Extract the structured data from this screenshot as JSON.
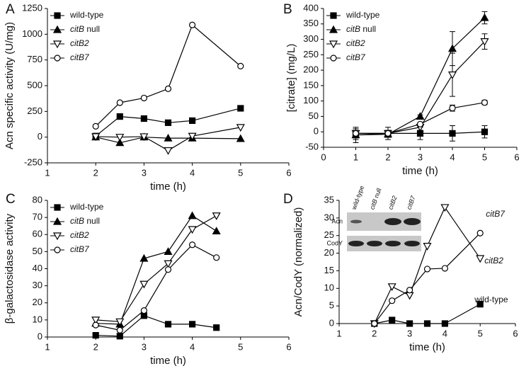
{
  "chart_data": [
    {
      "type": "line",
      "label": "A",
      "xlabel": "time (h)",
      "ylabel": "Acn specific activity (U/mg)",
      "xlim": [
        1,
        6
      ],
      "xticks": [
        1,
        2,
        3,
        4,
        5,
        6
      ],
      "ylim": [
        -250,
        1250
      ],
      "yticks": [
        -250,
        0,
        250,
        500,
        750,
        1000,
        1250
      ],
      "legend": "upper left",
      "x": [
        2,
        2.5,
        3,
        3.5,
        4,
        5
      ],
      "series": [
        {
          "name": "wild-type",
          "color": "#000000",
          "marker": "square",
          "filled": true,
          "values": [
            10,
            200,
            180,
            140,
            160,
            280
          ]
        },
        {
          "name": "citB null",
          "color": "#000000",
          "marker": "triangle",
          "filled": true,
          "values": [
            0,
            -55,
            0,
            -10,
            -10,
            -15
          ]
        },
        {
          "name": "citB2",
          "color": "#000000",
          "marker": "triangle-down",
          "filled": false,
          "values": [
            5,
            0,
            5,
            -130,
            10,
            95
          ]
        },
        {
          "name": "citB7",
          "color": "#000000",
          "marker": "circle",
          "filled": false,
          "values": [
            105,
            335,
            380,
            470,
            1090,
            690
          ]
        }
      ]
    },
    {
      "type": "line",
      "label": "B",
      "xlabel": "time (h)",
      "ylabel": "[citrate] (mg/L)",
      "xlim": [
        0,
        6
      ],
      "xticks": [
        0,
        1,
        2,
        3,
        4,
        5,
        6
      ],
      "ylim": [
        -50,
        400
      ],
      "yticks": [
        -50,
        0,
        50,
        100,
        150,
        200,
        250,
        300,
        350,
        400
      ],
      "legend": "upper left",
      "x": [
        1,
        2,
        3,
        4,
        5
      ],
      "series": [
        {
          "name": "wild-type",
          "color": "#000000",
          "marker": "square",
          "filled": true,
          "values": [
            -10,
            -5,
            -5,
            -5,
            0
          ],
          "errors": [
            25,
            20,
            20,
            25,
            20
          ]
        },
        {
          "name": "citB null",
          "color": "#000000",
          "marker": "triangle",
          "filled": true,
          "values": [
            -10,
            -8,
            50,
            270,
            370
          ],
          "errors": [
            15,
            10,
            5,
            55,
            20
          ]
        },
        {
          "name": "citB2",
          "color": "#000000",
          "marker": "triangle-down",
          "filled": false,
          "values": [
            -5,
            -5,
            15,
            185,
            293
          ],
          "errors": [
            15,
            10,
            10,
            70,
            25
          ]
        },
        {
          "name": "citB7",
          "color": "#000000",
          "marker": "circle",
          "filled": false,
          "values": [
            -5,
            -5,
            25,
            77,
            95
          ],
          "errors": [
            10,
            10,
            5,
            10,
            7
          ]
        }
      ]
    },
    {
      "type": "line",
      "label": "C",
      "xlabel": "time (h)",
      "ylabel": "β-galactosidase  activity",
      "xlim": [
        1,
        6
      ],
      "xticks": [
        1,
        2,
        3,
        4,
        5,
        6
      ],
      "ylim": [
        0,
        80
      ],
      "yticks": [
        0,
        10,
        20,
        30,
        40,
        50,
        60,
        70,
        80
      ],
      "legend": "upper left",
      "x": [
        2,
        2.5,
        3,
        3.5,
        4,
        4.5
      ],
      "series": [
        {
          "name": "wild-type",
          "color": "#000000",
          "marker": "square",
          "filled": true,
          "values": [
            1,
            0.5,
            12.5,
            7.5,
            7.5,
            5.5
          ]
        },
        {
          "name": "citB null",
          "color": "#000000",
          "marker": "triangle",
          "filled": true,
          "values": [
            8,
            7.5,
            46,
            50,
            71,
            62
          ]
        },
        {
          "name": "citB2",
          "color": "#000000",
          "marker": "triangle-down",
          "filled": false,
          "values": [
            10,
            9,
            31,
            43,
            63,
            71
          ]
        },
        {
          "name": "citB7",
          "color": "#000000",
          "marker": "circle",
          "filled": false,
          "values": [
            7,
            4,
            15.5,
            39.5,
            54,
            46.5
          ]
        }
      ]
    },
    {
      "type": "line",
      "label": "D",
      "xlabel": "time (h)",
      "ylabel": "Acn/CodY (normalized)",
      "xlim": [
        1,
        6
      ],
      "xticks": [
        1,
        2,
        3,
        4,
        5,
        6
      ],
      "ylim": [
        0,
        35
      ],
      "yticks": [
        0,
        5,
        10,
        15,
        20,
        25,
        30,
        35
      ],
      "legend": "direct",
      "x": [
        2,
        2.5,
        3,
        3.5,
        4,
        5
      ],
      "series": [
        {
          "name": "wild-type",
          "color": "#000000",
          "marker": "square",
          "filled": true,
          "values": [
            0,
            1,
            0,
            0,
            0,
            5.5
          ]
        },
        {
          "name": "citB2",
          "color": "#000000",
          "marker": "triangle-down",
          "filled": false,
          "values": [
            0,
            10.5,
            8,
            22,
            33,
            18.5
          ]
        },
        {
          "name": "citB7",
          "color": "#000000",
          "marker": "circle",
          "filled": false,
          "values": [
            0,
            6.5,
            9.5,
            15.5,
            15.7,
            25.7
          ]
        }
      ],
      "inset": {
        "lanes": [
          "wild-type",
          "citB null",
          "citB2",
          "citB7"
        ],
        "rows": [
          "Acn",
          "CodY"
        ]
      }
    }
  ]
}
